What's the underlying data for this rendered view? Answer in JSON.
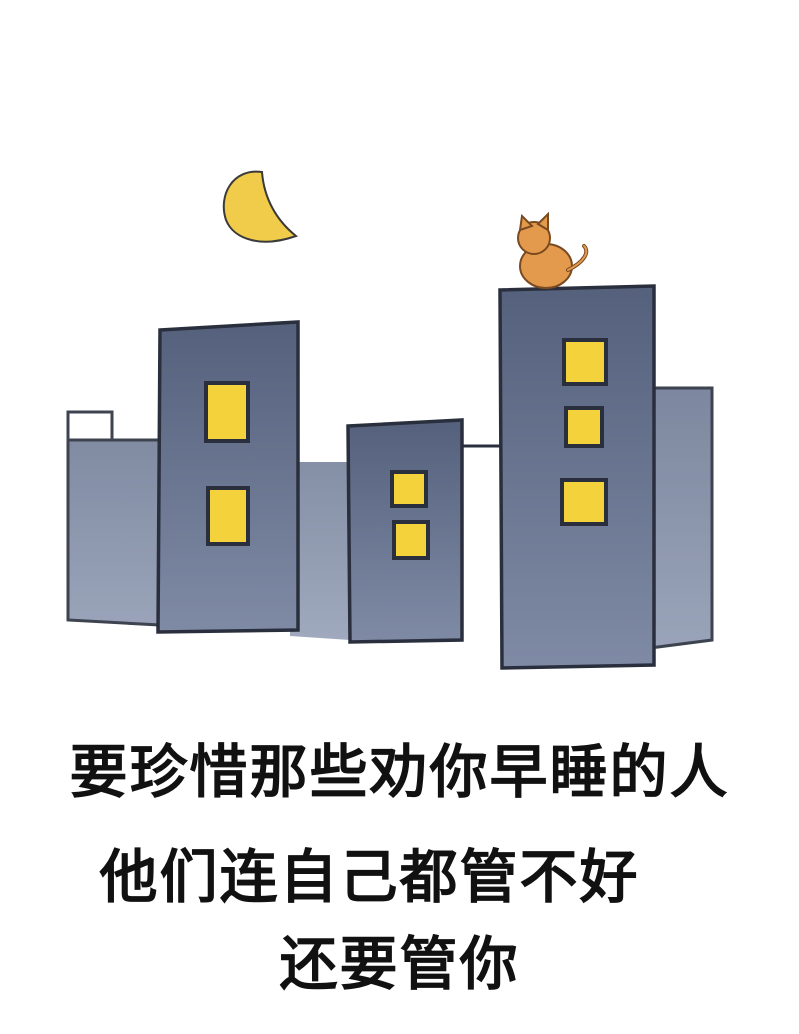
{
  "caption": {
    "line1": "要珍惜那些劝你早睡的人",
    "line2": "他们连自己都管不好",
    "line3": "还要管你"
  },
  "colors": {
    "building": "#5c6882",
    "building_light": "#7d89a3",
    "outline": "#2a2f3e",
    "window": "#f4d23c",
    "moon": "#f0cc4a",
    "cat": "#e39a4c",
    "text": "#111111"
  },
  "icons": {
    "moon": "crescent-moon-icon",
    "cat": "cat-icon"
  }
}
